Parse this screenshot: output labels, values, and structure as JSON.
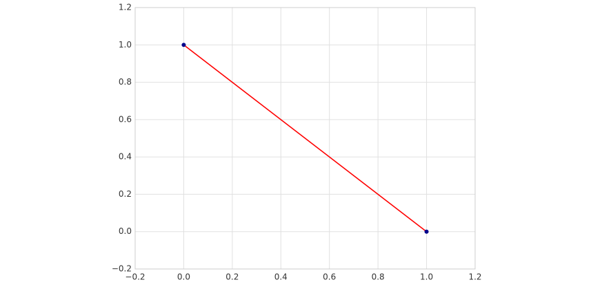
{
  "chart_data": {
    "type": "line",
    "x": [
      0,
      1
    ],
    "series": [
      {
        "color": "#ff0000",
        "marker_color": "#00008b",
        "values": [
          1,
          0
        ]
      }
    ],
    "xlim": [
      -0.2,
      1.2
    ],
    "xticks": [
      {
        "value": -0.2,
        "label": "−0.2"
      },
      {
        "value": 0,
        "label": "0.0"
      },
      0.2,
      0.4,
      0.6,
      0.8,
      {
        "value": 1,
        "label": "1.0"
      },
      1.2
    ],
    "ylim": [
      -0.2,
      1.2
    ],
    "yticks": [
      {
        "value": -0.2,
        "label": "−0.2"
      },
      {
        "value": 0,
        "label": "0.0"
      },
      0.2,
      0.4,
      0.6,
      0.8,
      {
        "value": 1,
        "label": "1.0"
      },
      1.2
    ],
    "grid": true
  }
}
